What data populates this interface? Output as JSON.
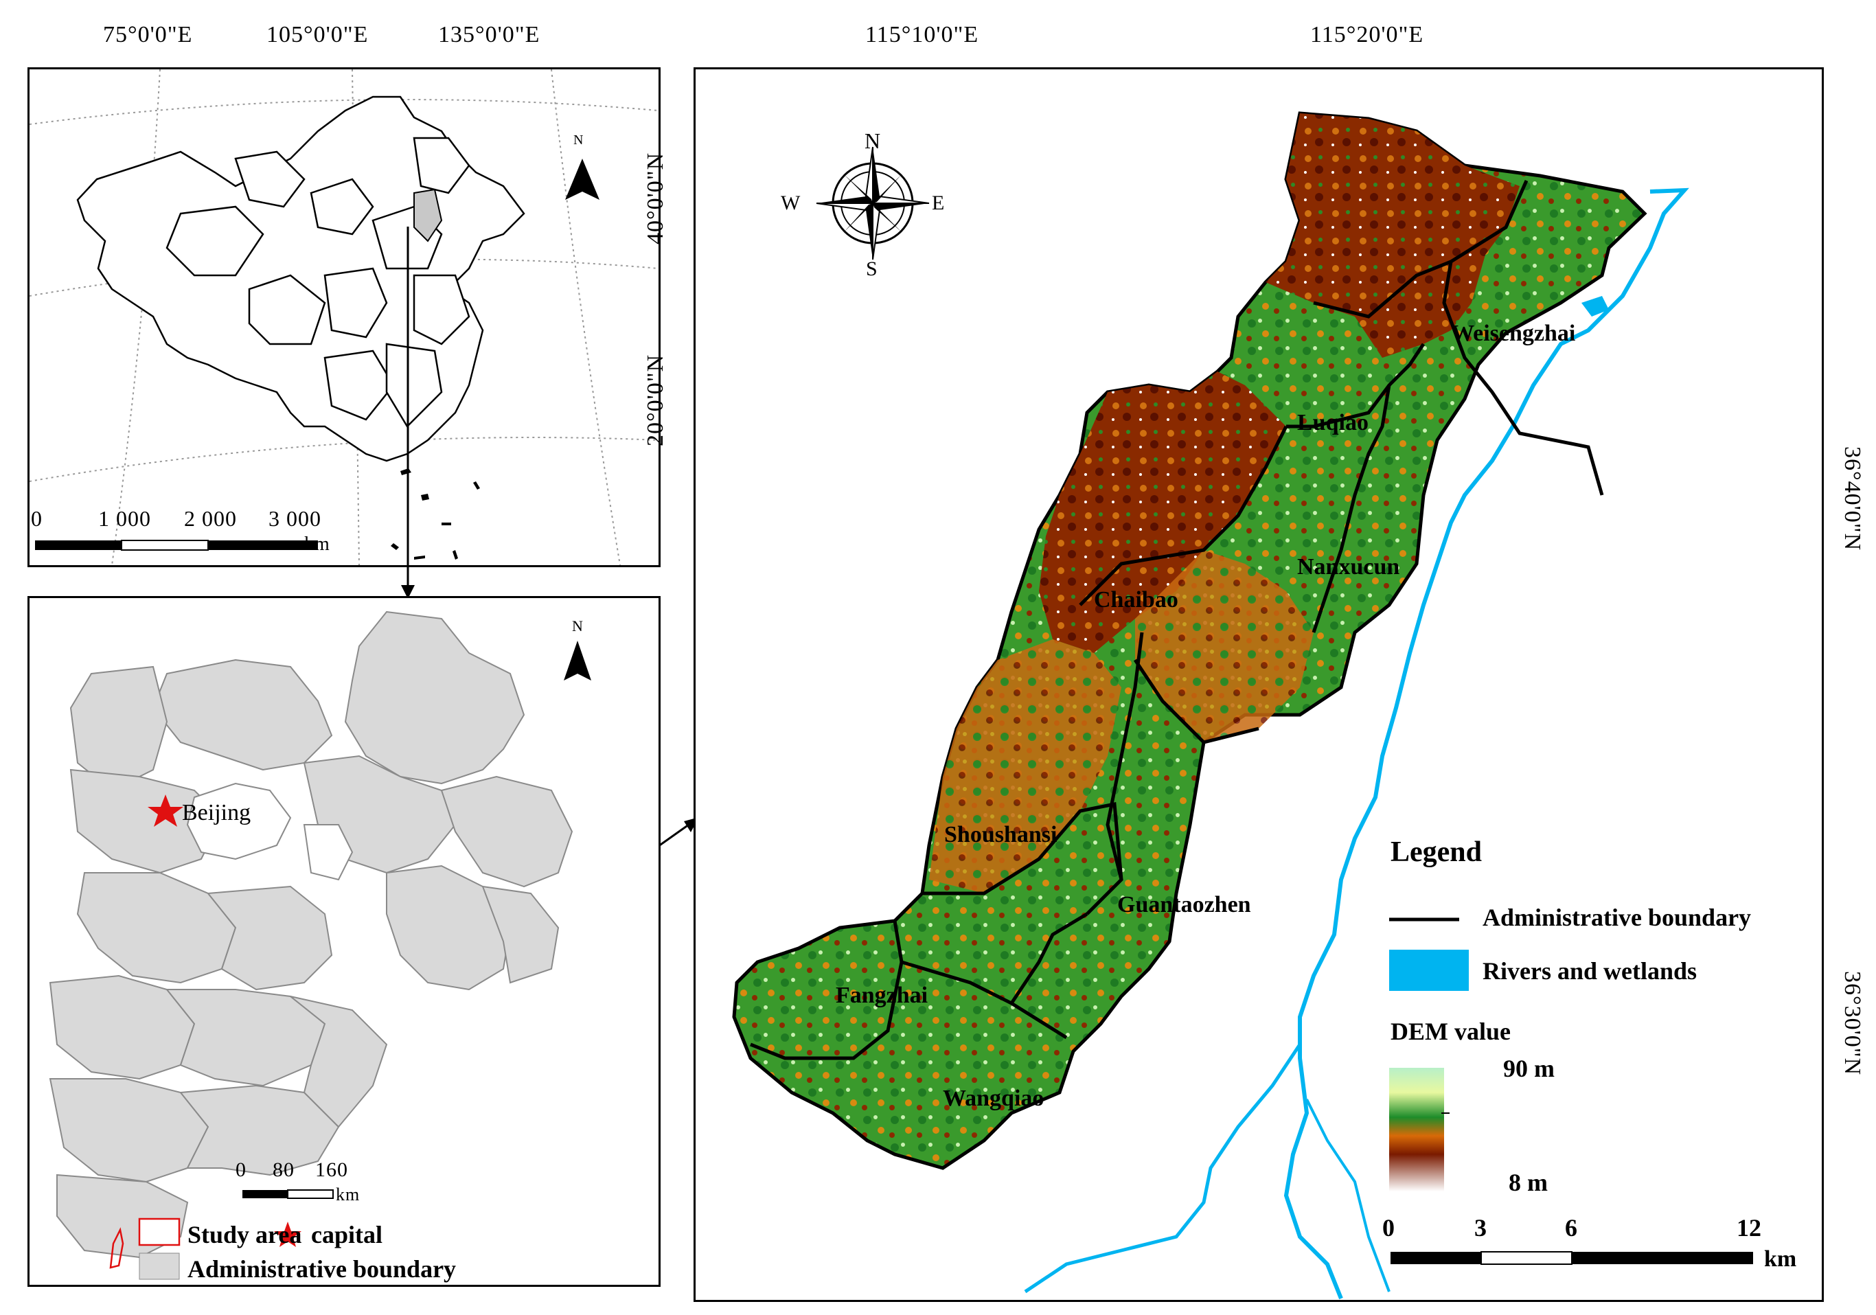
{
  "top_left_map": {
    "longitude_labels": [
      "75°0'0\"E",
      "105°0'0\"E",
      "135°0'0\"E"
    ],
    "latitude_labels": [
      "40°0'0\"N",
      "20°0'0\"N"
    ],
    "north_label": "N",
    "scalebar": {
      "ticks": [
        "0",
        "1 000",
        "2 000",
        "3 000"
      ],
      "unit": "km"
    }
  },
  "bottom_left_map": {
    "north_label": "N",
    "capital_label": "Beijing",
    "scalebar": {
      "ticks": [
        "0",
        "80",
        "160"
      ],
      "unit": "km"
    },
    "legend": {
      "study_area": "Study area",
      "capital": "capital",
      "admin_boundary": "Administrative boundary"
    }
  },
  "main_map": {
    "longitude_labels": [
      "115°10'0\"E",
      "115°20'0\"E"
    ],
    "latitude_labels": [
      "36°40'0\"N",
      "36°30'0\"N"
    ],
    "compass": {
      "n": "N",
      "s": "S",
      "e": "E",
      "w": "W"
    },
    "towns": [
      "Weisengzhai",
      "Luqiao",
      "Nanxucun",
      "Chaibao",
      "Shoushansi",
      "Guantaozhen",
      "Fangzhai",
      "Wangqiao"
    ],
    "legend": {
      "title": "Legend",
      "admin_boundary": "Administrative boundary",
      "rivers": "Rivers and wetlands",
      "dem_title": "DEM value",
      "dem_max": "90 m",
      "dem_min": "8 m"
    },
    "scalebar": {
      "ticks": [
        "0",
        "3",
        "6",
        "12"
      ],
      "unit": "km"
    },
    "colors": {
      "river": "#00b4f0",
      "dem_high": "#b8f0c8",
      "dem_green": "#1e8c2a",
      "dem_orange": "#d86a08",
      "dem_dark": "#7a1a00"
    }
  }
}
